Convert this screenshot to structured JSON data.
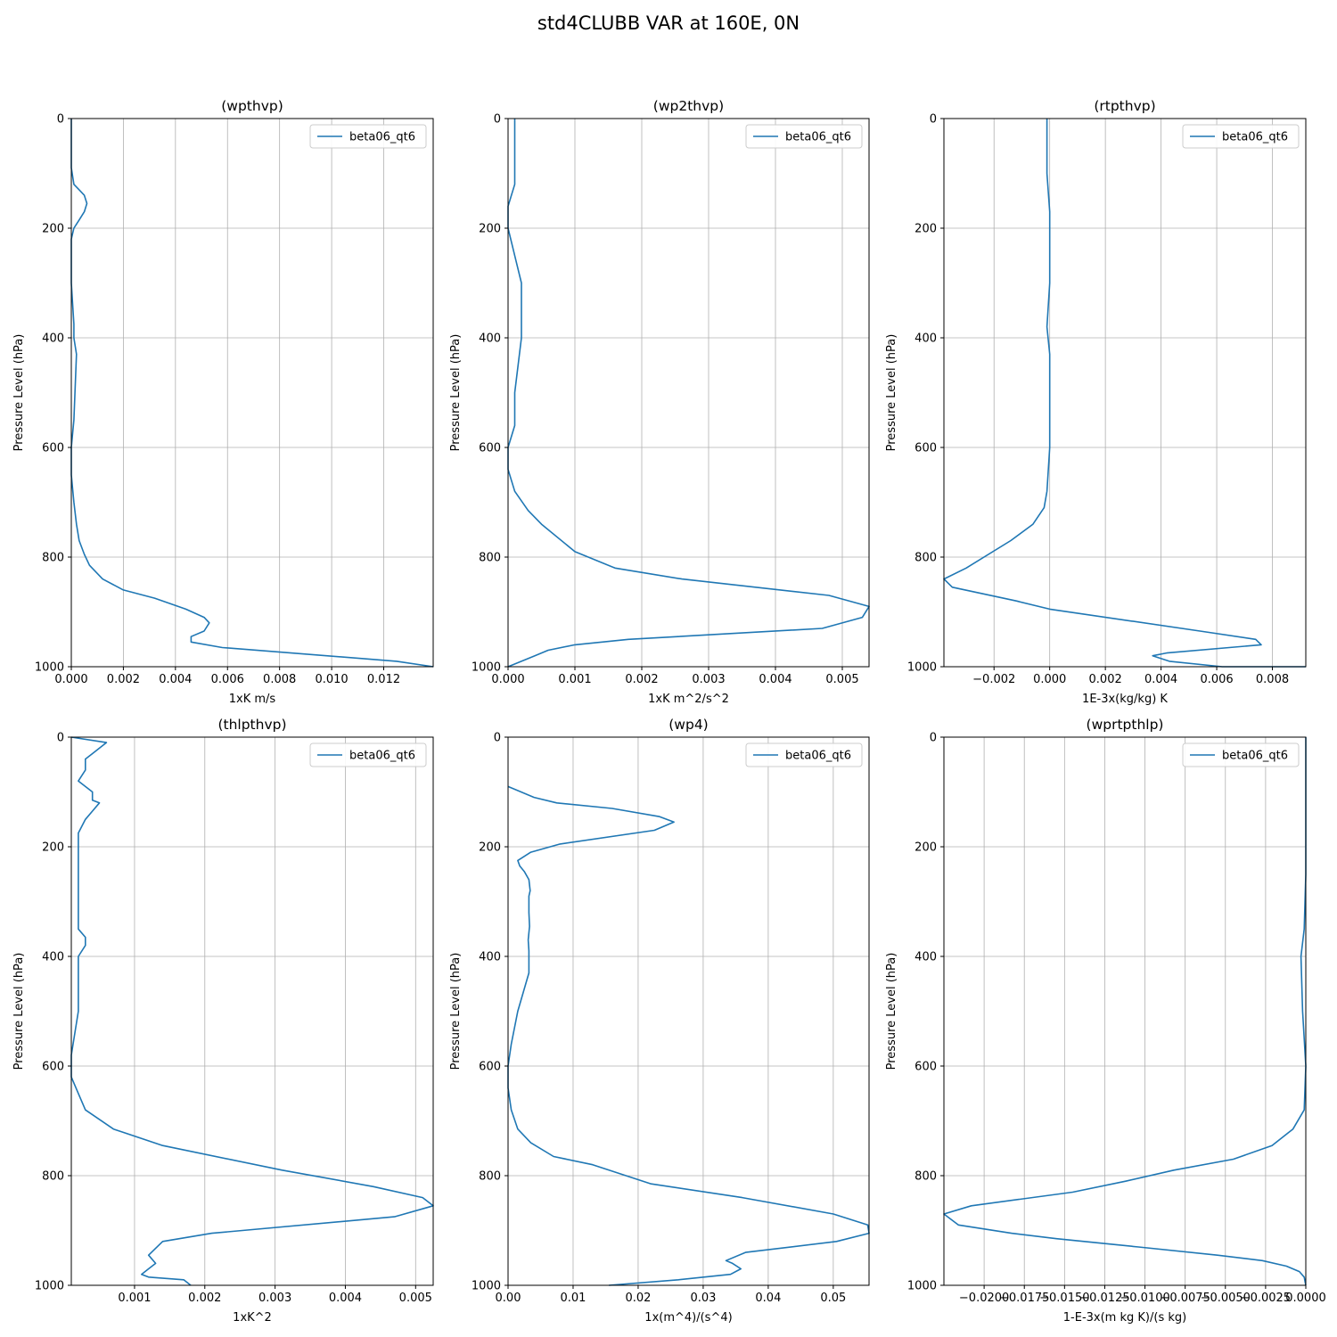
{
  "figure": {
    "title": "std4CLUBB VAR at 160E, 0N",
    "line_color": "#1f77b4"
  },
  "chart_data": [
    {
      "type": "line",
      "title": "(wpthvp)",
      "xlabel": "1xK m/s",
      "ylabel": "Pressure Level (hPa)",
      "xlim": [
        0,
        0.0139
      ],
      "ylim": [
        1000,
        0
      ],
      "xticks": [
        0,
        0.002,
        0.004,
        0.006,
        0.008,
        0.01,
        0.012
      ],
      "xtick_labels": [
        "0.000",
        "0.002",
        "0.004",
        "0.006",
        "0.008",
        "0.010",
        "0.012"
      ],
      "yticks": [
        0,
        200,
        400,
        600,
        800,
        1000
      ],
      "ytick_labels": [
        "0",
        "200",
        "400",
        "600",
        "800",
        "1000"
      ],
      "grid": true,
      "legend": "top-right",
      "series": [
        {
          "name": "beta06_qt6",
          "x": [
            0.0,
            0.0,
            0.0001,
            0.0003,
            0.0005,
            0.0006,
            0.0005,
            0.0003,
            0.0001,
            0.0,
            0.0,
            0.0001,
            0.0001,
            0.0002,
            0.0001,
            0.0,
            0.0,
            0.0001,
            0.0002,
            0.0003,
            0.0005,
            0.0007,
            0.0012,
            0.002,
            0.0032,
            0.0044,
            0.0051,
            0.0053,
            0.0051,
            0.0046,
            0.0046,
            0.0058,
            0.0125,
            0.0139
          ],
          "y": [
            0,
            90,
            120,
            130,
            140,
            155,
            170,
            185,
            200,
            220,
            300,
            375,
            400,
            430,
            550,
            600,
            650,
            700,
            740,
            770,
            795,
            815,
            840,
            860,
            875,
            895,
            910,
            920,
            935,
            945,
            955,
            965,
            990,
            1000
          ]
        }
      ]
    },
    {
      "type": "line",
      "title": "(wp2thvp)",
      "xlabel": "1xK m^2/s^2",
      "ylabel": "Pressure Level (hPa)",
      "xlim": [
        0,
        0.0054
      ],
      "ylim": [
        1000,
        0
      ],
      "xticks": [
        0,
        0.001,
        0.002,
        0.003,
        0.004,
        0.005
      ],
      "xtick_labels": [
        "0.000",
        "0.001",
        "0.002",
        "0.003",
        "0.004",
        "0.005"
      ],
      "yticks": [
        0,
        200,
        400,
        600,
        800,
        1000
      ],
      "ytick_labels": [
        "0",
        "200",
        "400",
        "600",
        "800",
        "1000"
      ],
      "grid": true,
      "legend": "top-right",
      "series": [
        {
          "name": "beta06_qt6",
          "x": [
            0.0001,
            0.0001,
            0.0,
            0.0,
            0.0,
            0.0001,
            0.0002,
            0.0002,
            0.0002,
            0.0001,
            0.0001,
            0.0,
            0.0,
            0.0001,
            0.0003,
            0.0005,
            0.001,
            0.0016,
            0.0026,
            0.0048,
            0.0054,
            0.0053,
            0.0047,
            0.0018,
            0.001,
            0.0006,
            0.0004,
            0.0002,
            0.0
          ],
          "y": [
            0,
            120,
            160,
            180,
            200,
            250,
            300,
            360,
            400,
            500,
            560,
            600,
            640,
            680,
            715,
            740,
            790,
            820,
            840,
            870,
            890,
            910,
            930,
            950,
            960,
            970,
            980,
            990,
            1000
          ]
        }
      ]
    },
    {
      "type": "line",
      "title": "(rtpthvp)",
      "xlabel": "1E-3x(kg/kg) K",
      "ylabel": "Pressure Level (hPa)",
      "xlim": [
        -0.0038,
        0.0092
      ],
      "ylim": [
        1000,
        0
      ],
      "xticks": [
        -0.002,
        0,
        0.002,
        0.004,
        0.006,
        0.008
      ],
      "xtick_labels": [
        "−0.002",
        "0.000",
        "0.002",
        "0.004",
        "0.006",
        "0.008"
      ],
      "yticks": [
        0,
        200,
        400,
        600,
        800,
        1000
      ],
      "ytick_labels": [
        "0",
        "200",
        "400",
        "600",
        "800",
        "1000"
      ],
      "grid": true,
      "legend": "top-right",
      "series": [
        {
          "name": "beta06_qt6",
          "x": [
            -0.0001,
            -0.0001,
            0.0,
            0.0,
            -0.0001,
            0.0,
            0.0,
            -0.0001,
            -0.0002,
            -0.0006,
            -0.0014,
            -0.003,
            -0.0038,
            -0.0035,
            -0.0012,
            0.0,
            0.0054,
            0.0074,
            0.0076,
            0.0042,
            0.0037,
            0.0043,
            0.0062,
            0.0092
          ],
          "y": [
            0,
            100,
            170,
            300,
            380,
            430,
            600,
            680,
            710,
            740,
            770,
            820,
            840,
            855,
            880,
            895,
            935,
            950,
            960,
            975,
            980,
            990,
            1000,
            1000
          ]
        }
      ]
    },
    {
      "type": "line",
      "title": "(thlpthvp)",
      "xlabel": "1xK^2",
      "ylabel": "Pressure Level (hPa)",
      "xlim": [
        0.0001,
        0.00525
      ],
      "ylim": [
        1000,
        0
      ],
      "xticks": [
        0.001,
        0.002,
        0.003,
        0.004,
        0.005
      ],
      "xtick_labels": [
        "0.001",
        "0.002",
        "0.003",
        "0.004",
        "0.005"
      ],
      "yticks": [
        0,
        200,
        400,
        600,
        800,
        1000
      ],
      "ytick_labels": [
        "0",
        "200",
        "400",
        "600",
        "800",
        "1000"
      ],
      "grid": true,
      "legend": "top-right",
      "series": [
        {
          "name": "beta06_qt6",
          "x": [
            0.0001,
            0.0006,
            0.0004,
            0.0003,
            0.0003,
            0.0002,
            0.0003,
            0.0004,
            0.0004,
            0.0005,
            0.0004,
            0.0003,
            0.0002,
            0.0002,
            0.0002,
            0.0002,
            0.0002,
            0.0002,
            0.0002,
            0.0003,
            0.0003,
            0.0002,
            0.0002,
            0.0002,
            0.0001,
            0.0001,
            0.0002,
            0.0003,
            0.0007,
            0.0014,
            0.0031,
            0.0044,
            0.0051,
            0.00525,
            0.0047,
            0.0021,
            0.0014,
            0.0012,
            0.0013,
            0.0012,
            0.0011,
            0.0012,
            0.0017,
            0.0018
          ],
          "y": [
            0,
            10,
            30,
            40,
            60,
            80,
            90,
            100,
            115,
            120,
            135,
            150,
            175,
            195,
            210,
            230,
            280,
            330,
            350,
            365,
            380,
            400,
            430,
            500,
            580,
            620,
            650,
            680,
            715,
            745,
            790,
            820,
            840,
            855,
            875,
            905,
            920,
            945,
            960,
            970,
            980,
            985,
            990,
            1000
          ]
        }
      ]
    },
    {
      "type": "line",
      "title": "(wp4)",
      "xlabel": "1x(m^4)/(s^4)",
      "ylabel": "Pressure Level (hPa)",
      "xlim": [
        0,
        0.0555
      ],
      "ylim": [
        1000,
        0
      ],
      "xticks": [
        0,
        0.01,
        0.02,
        0.03,
        0.04,
        0.05
      ],
      "xtick_labels": [
        "0.00",
        "0.01",
        "0.02",
        "0.03",
        "0.04",
        "0.05"
      ],
      "yticks": [
        0,
        200,
        400,
        600,
        800,
        1000
      ],
      "ytick_labels": [
        "0",
        "200",
        "400",
        "600",
        "800",
        "1000"
      ],
      "grid": true,
      "legend": "top-right",
      "series": [
        {
          "name": "beta06_qt6",
          "x": [
            0.0,
            0.0,
            0.004,
            0.0075,
            0.016,
            0.0233,
            0.0255,
            0.0225,
            0.008,
            0.0035,
            0.0015,
            0.0018,
            0.0025,
            0.0032,
            0.0034,
            0.0032,
            0.0032,
            0.0033,
            0.0031,
            0.0032,
            0.0032,
            0.0015,
            0.0005,
            0.0,
            0.0,
            0.0005,
            0.0015,
            0.0035,
            0.007,
            0.013,
            0.022,
            0.036,
            0.05,
            0.0553,
            0.0555,
            0.0505,
            0.0365,
            0.0335,
            0.0345,
            0.0358,
            0.0342,
            0.0262,
            0.0155
          ],
          "y": [
            90,
            90,
            110,
            120,
            130,
            145,
            155,
            170,
            195,
            210,
            225,
            235,
            245,
            260,
            280,
            290,
            320,
            345,
            370,
            390,
            430,
            500,
            560,
            600,
            640,
            680,
            715,
            740,
            765,
            780,
            815,
            840,
            870,
            890,
            905,
            920,
            940,
            955,
            960,
            970,
            980,
            990,
            1000
          ]
        }
      ]
    },
    {
      "type": "line",
      "title": "(wprtpthlp)",
      "xlabel": "1-E-3x(m kg K)/(s kg)",
      "ylabel": "Pressure Level (hPa)",
      "xlim": [
        -0.0225,
        0.0
      ],
      "ylim": [
        1000,
        0
      ],
      "xticks": [
        -0.02,
        -0.0175,
        -0.015,
        -0.0125,
        -0.01,
        -0.0075,
        -0.005,
        -0.0025,
        0.0
      ],
      "xtick_labels": [
        "−0.0200",
        "−0.0175",
        "−0.0150",
        "−0.0125",
        "−0.0100",
        "−0.0075",
        "−0.0050",
        "−0.0025",
        "0.0000"
      ],
      "yticks": [
        0,
        200,
        400,
        600,
        800,
        1000
      ],
      "ytick_labels": [
        "0",
        "200",
        "400",
        "600",
        "800",
        "1000"
      ],
      "grid": true,
      "legend": "top-right",
      "series": [
        {
          "name": "beta06_qt6",
          "x": [
            0.0,
            0.0,
            -0.0001,
            -0.0003,
            -0.0002,
            0.0,
            -0.0001,
            -0.0008,
            -0.0021,
            -0.0045,
            -0.0082,
            -0.0112,
            -0.0145,
            -0.0208,
            -0.0225,
            -0.0216,
            -0.0183,
            -0.0155,
            -0.0104,
            -0.0055,
            -0.0027,
            -0.0012,
            -0.0004,
            -0.0001,
            0.0
          ],
          "y": [
            0,
            250,
            350,
            400,
            500,
            600,
            680,
            715,
            745,
            770,
            790,
            810,
            830,
            855,
            870,
            890,
            905,
            915,
            930,
            945,
            955,
            965,
            975,
            985,
            1000
          ]
        }
      ]
    }
  ]
}
